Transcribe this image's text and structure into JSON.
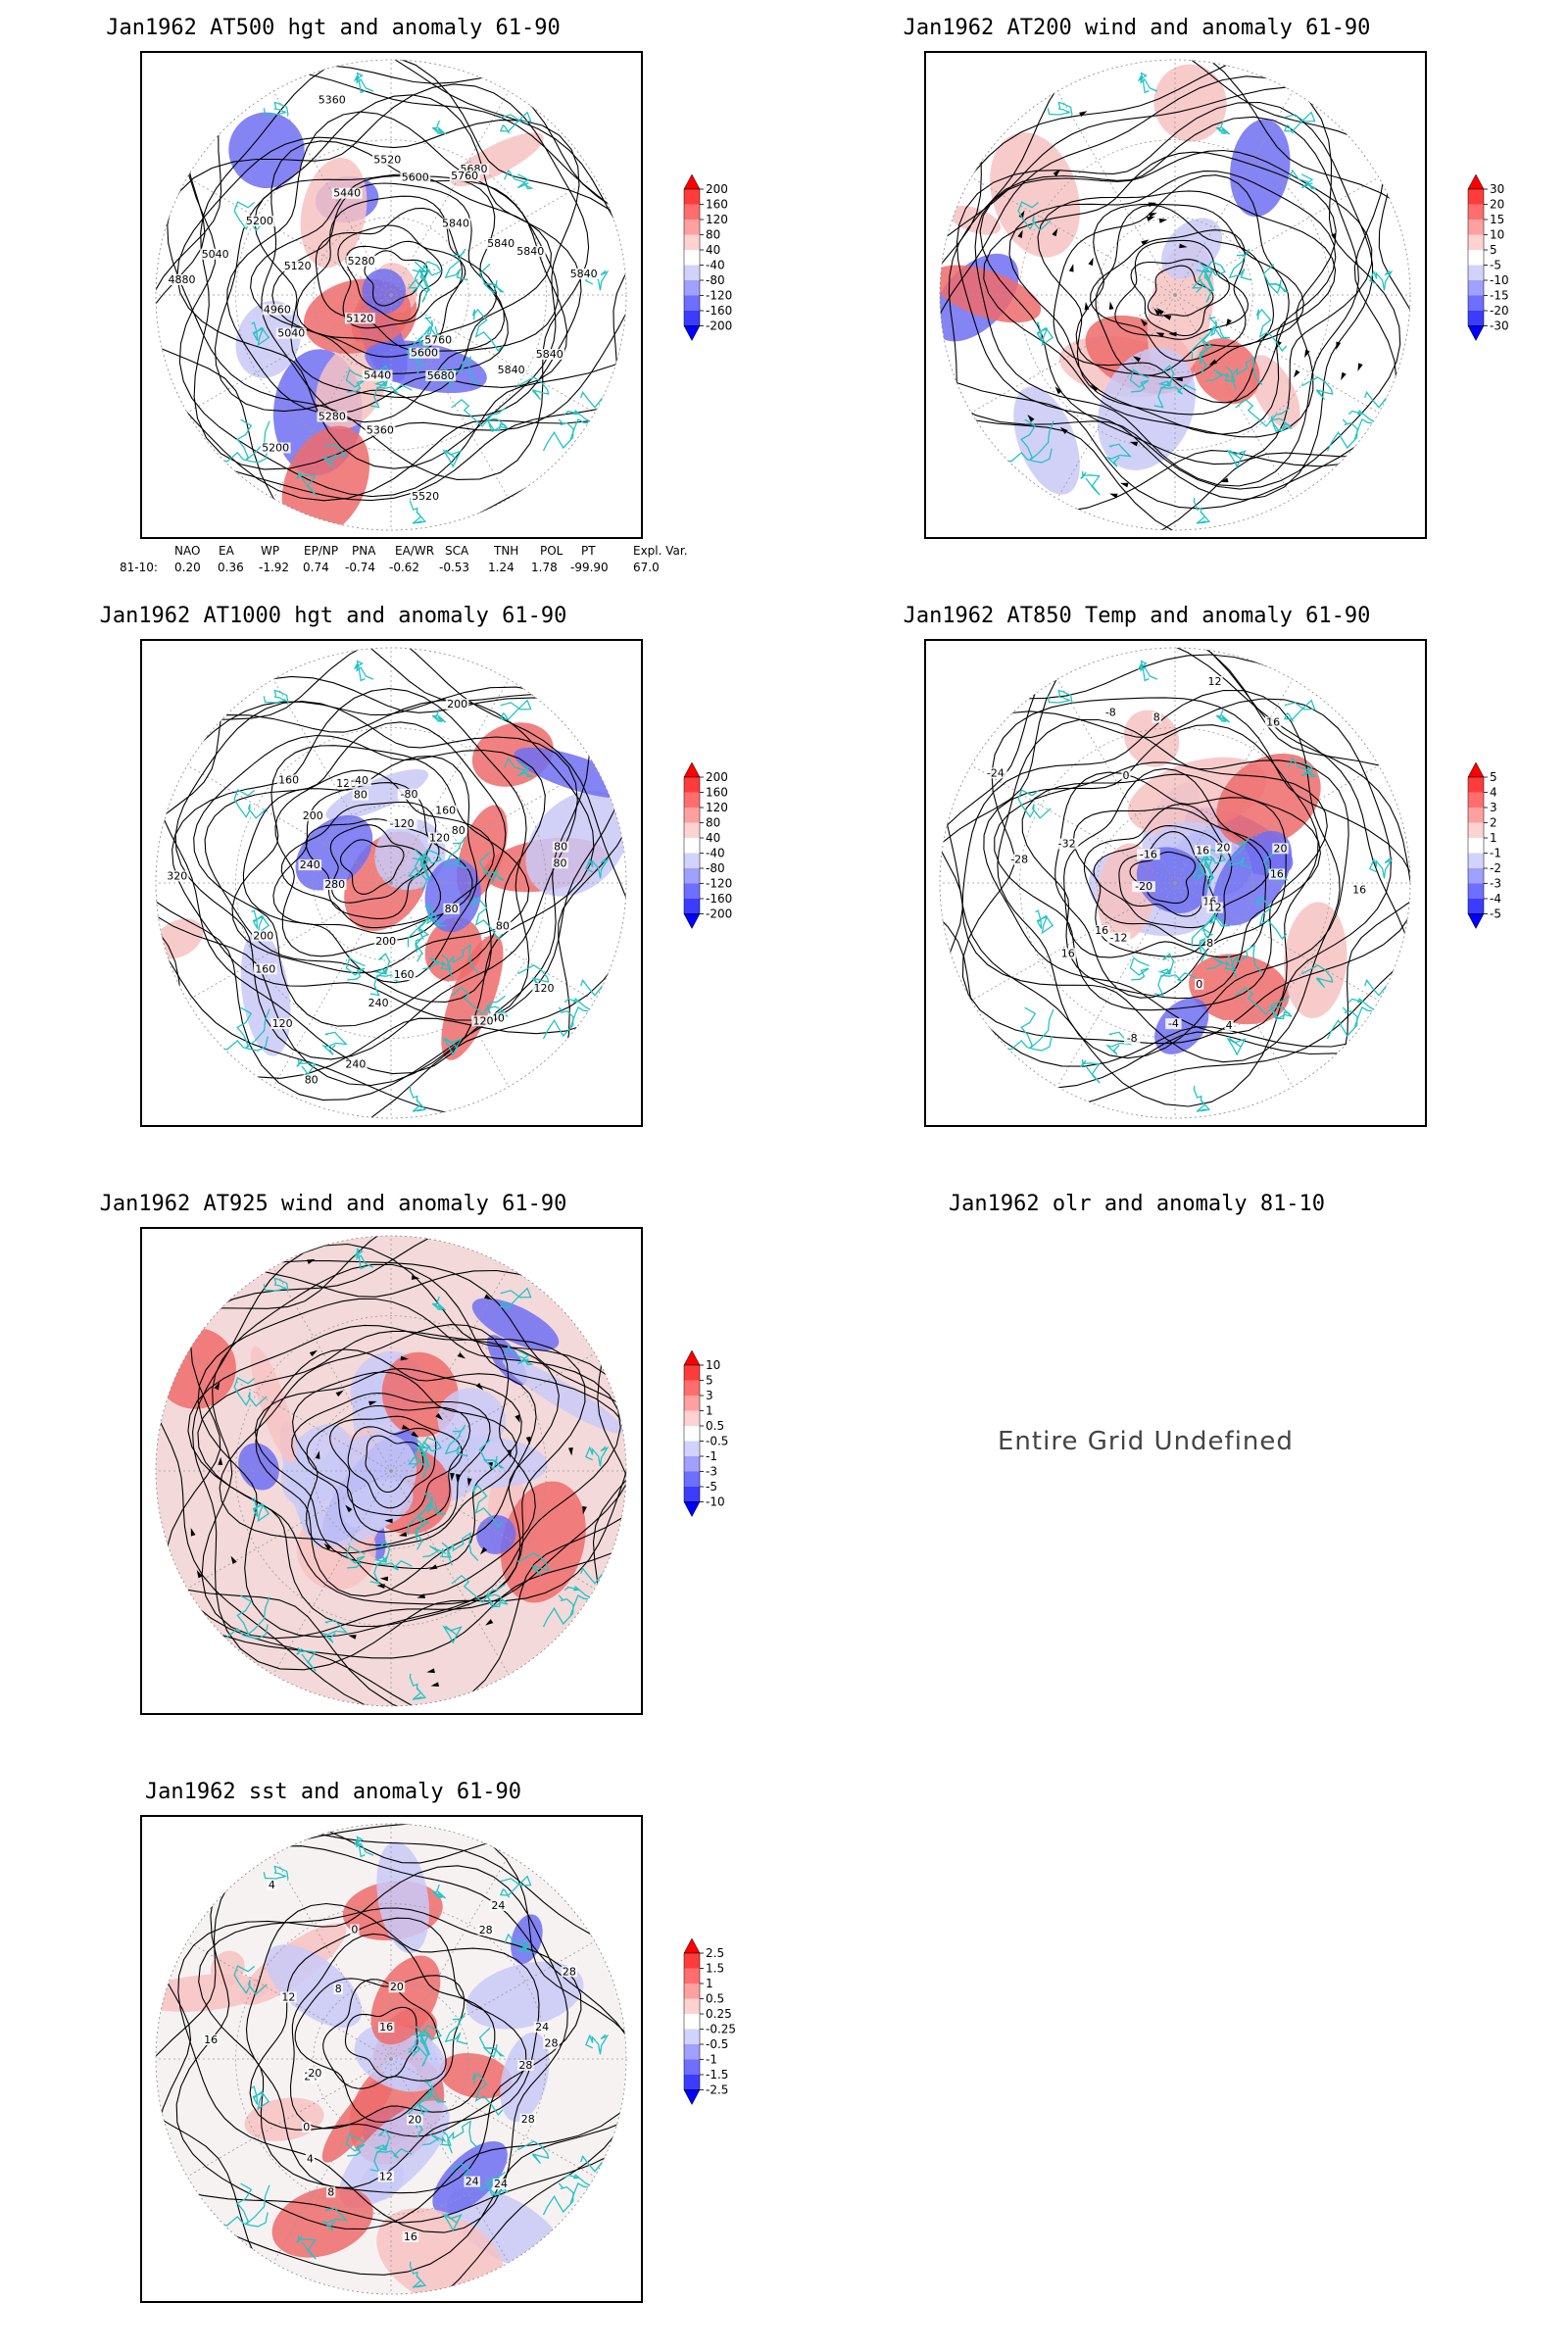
{
  "panels": [
    {
      "id": "p500",
      "title": "Jan1962 AT500 hgt and anomaly 61-90",
      "contour_labels": [
        "5840",
        "5840",
        "5760",
        "5680",
        "5600",
        "5520",
        "5440",
        "5360",
        "5280",
        "5200",
        "5120",
        "5040",
        "4960",
        "4880",
        "5040",
        "5120",
        "5200",
        "5280",
        "5360",
        "5440",
        "5520",
        "5600",
        "5680",
        "5760",
        "5840",
        "5840",
        "5840",
        "5840"
      ],
      "colorbar": [
        "200",
        "160",
        "120",
        "80",
        "40",
        "-40",
        "-80",
        "-120",
        "-160",
        "-200"
      ]
    },
    {
      "id": "p200",
      "title": "Jan1962 AT200 wind and anomaly 61-90",
      "contour_labels": [],
      "colorbar": [
        "30",
        "20",
        "15",
        "10",
        "5",
        "-5",
        "-10",
        "-15",
        "-20",
        "-30"
      ]
    },
    {
      "id": "p1000",
      "title": "Jan1962 AT1000 hgt and anomaly 61-90",
      "contour_labels": [
        "80",
        "80",
        "120",
        "40",
        "120",
        "160",
        "200",
        "240",
        "240",
        "80",
        "120",
        "160",
        "200",
        "320",
        "280",
        "240",
        "200",
        "160",
        "120",
        "80",
        "-40",
        "-80",
        "-120",
        "200",
        "160",
        "120",
        "80",
        "80",
        "80"
      ],
      "colorbar": [
        "200",
        "160",
        "120",
        "80",
        "40",
        "-40",
        "-80",
        "-120",
        "-160",
        "-200"
      ]
    },
    {
      "id": "p850",
      "title": "Jan1962 AT850 Temp and anomaly 61-90",
      "contour_labels": [
        "16",
        "16",
        "12",
        "8",
        "4",
        "0",
        "-4",
        "-8",
        "-12",
        "16",
        "16",
        "-20",
        "-28",
        "-32",
        "-24",
        "-16",
        "-8",
        "0",
        "8",
        "12",
        "16",
        "16",
        "20",
        "20",
        "16"
      ],
      "colorbar": [
        "5",
        "4",
        "3",
        "2",
        "1",
        "-1",
        "-2",
        "-3",
        "-4",
        "-5"
      ]
    },
    {
      "id": "p925",
      "title": "Jan1962 AT925 wind and anomaly 61-90",
      "contour_labels": [],
      "colorbar": [
        "10",
        "5",
        "3",
        "1",
        "0.5",
        "-0.5",
        "-1",
        "-3",
        "-5",
        "-10"
      ]
    },
    {
      "id": "polr",
      "title": "Jan1962 olr and anomaly 81-10",
      "message": "Entire Grid Undefined"
    },
    {
      "id": "psst",
      "title": "Jan1962 sst and anomaly 61-90",
      "contour_labels": [
        "28",
        "28",
        "24",
        "24",
        "20",
        "16",
        "12",
        "8",
        "4",
        "0",
        "24",
        "20",
        "16",
        "12",
        "8",
        "4",
        "0",
        "16",
        "20",
        "24",
        "28",
        "28",
        "24",
        "28"
      ],
      "colorbar": [
        "2.5",
        "1.5",
        "1",
        "0.5",
        "0.25",
        "-0.25",
        "-0.5",
        "-1",
        "-1.5",
        "-2.5"
      ]
    }
  ],
  "teleconnections": {
    "headers": [
      "NAO",
      "EA",
      "WP",
      "EP/NP",
      "PNA",
      "EA/WR",
      "SCA",
      "TNH",
      "POL",
      "PT",
      "Expl. Var."
    ],
    "row_label": "81-10:",
    "values": [
      "0.20",
      "0.36",
      "-1.92",
      "0.74",
      "-0.74",
      "-0.62",
      "-0.53",
      "1.24",
      "1.78",
      "-99.90",
      "67.0"
    ]
  },
  "colors": {
    "positive_strong": "#ff0000",
    "positive_light": "#ffd6d6",
    "negative_strong": "#0000ff",
    "negative_light": "#d6d6ff",
    "coastline": "#22c4c4",
    "contour": "#000000"
  }
}
